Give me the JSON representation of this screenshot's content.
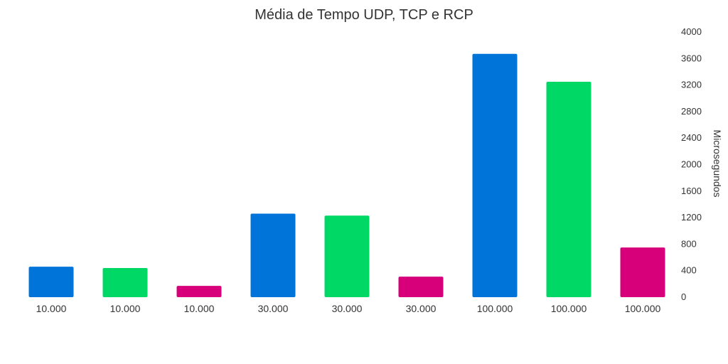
{
  "chart_data": {
    "type": "bar",
    "title": "Média de Tempo UDP, TCP e RCP",
    "ylabel": "Microsegundos",
    "ylim": [
      0,
      4000
    ],
    "yticks": [
      "0",
      "400",
      "800",
      "1200",
      "1600",
      "2000",
      "2400",
      "2800",
      "3200",
      "3600",
      "4000"
    ],
    "y_axis_side": "right",
    "grid": false,
    "categories": [
      "10.000",
      "10.000",
      "10.000",
      "30.000",
      "30.000",
      "30.000",
      "100.000",
      "100.000",
      "100.000"
    ],
    "values": [
      460,
      440,
      170,
      1260,
      1230,
      310,
      3670,
      3250,
      750
    ],
    "colors": [
      "#0074D9",
      "#00D866",
      "#D8007A",
      "#0074D9",
      "#00D866",
      "#D8007A",
      "#0074D9",
      "#00D866",
      "#D8007A"
    ]
  }
}
